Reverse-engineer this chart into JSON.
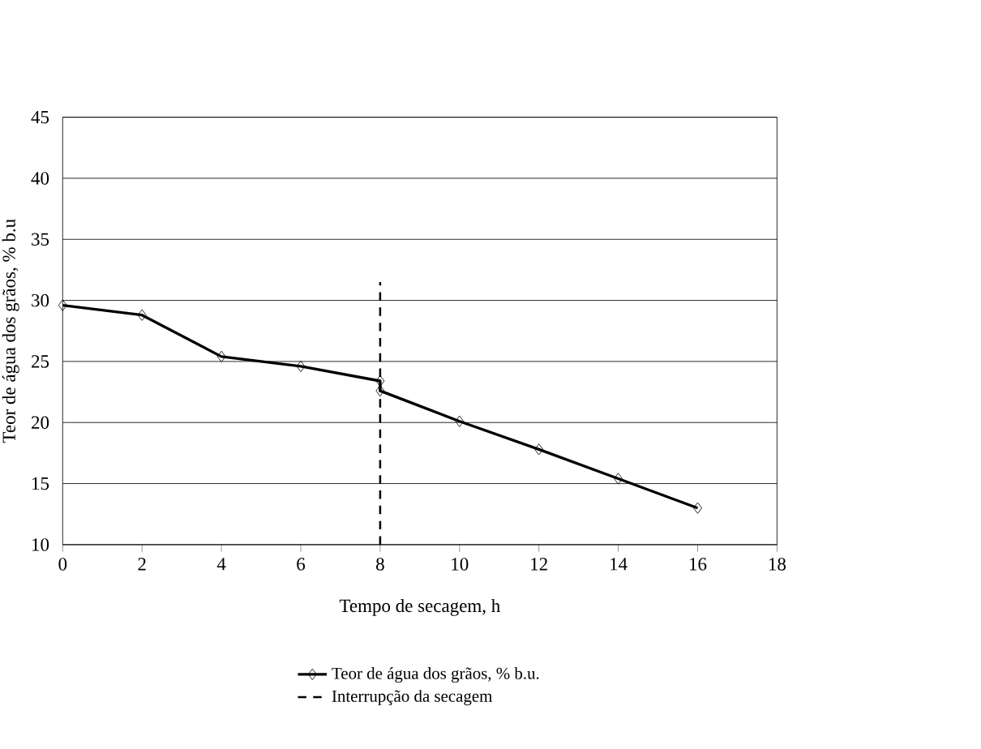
{
  "chart_data": {
    "type": "line",
    "xlabel": "Tempo de secagem, h",
    "ylabel": "Teor de água dos grãos, % b.u",
    "xlim": [
      0,
      18
    ],
    "xticks": [
      0,
      2,
      4,
      6,
      8,
      10,
      12,
      14,
      16,
      18
    ],
    "ylim": [
      10,
      45
    ],
    "yticks": [
      10,
      15,
      20,
      25,
      30,
      35,
      40,
      45
    ],
    "grid": "y",
    "legend": "bottom",
    "series": [
      {
        "name": "Teor de água dos grãos, % b.u.",
        "color": "#000000",
        "marker": "diamond",
        "line_style": "solid",
        "x": [
          0,
          2,
          4,
          6,
          8,
          8,
          10,
          12,
          14,
          16
        ],
        "values": [
          29.6,
          28.8,
          25.4,
          24.6,
          23.4,
          22.6,
          20.1,
          17.8,
          15.4,
          13.0
        ]
      },
      {
        "name": "Interrupção da secagem",
        "color": "#000000",
        "marker": "none",
        "line_style": "dashed",
        "x": [
          8,
          8
        ],
        "values": [
          10,
          31.5
        ]
      }
    ]
  }
}
